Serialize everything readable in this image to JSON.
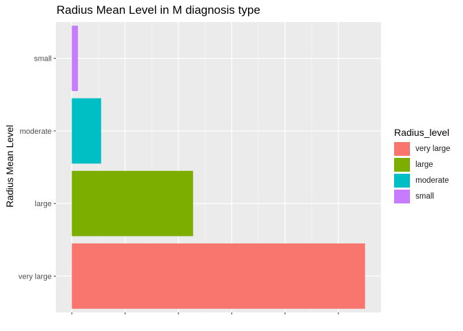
{
  "chart_data": {
    "type": "bar",
    "orientation": "horizontal",
    "title": "Radius Mean Level in M diagnosis type",
    "xlabel": "",
    "ylabel": "Radius Mean Level",
    "categories": [
      "very large",
      "large",
      "moderate",
      "small"
    ],
    "values": [
      110,
      45.5,
      11,
      2.3
    ],
    "colors": [
      "#F8766D",
      "#7CAE00",
      "#00BFC4",
      "#C77CFF"
    ],
    "xlim": [
      -6,
      116
    ],
    "x_gridlines": [
      0,
      20,
      40,
      60,
      80,
      100
    ],
    "grid": true,
    "legend": {
      "title": "Radius_level",
      "position": "right",
      "entries": [
        "very large",
        "large",
        "moderate",
        "small"
      ]
    }
  }
}
